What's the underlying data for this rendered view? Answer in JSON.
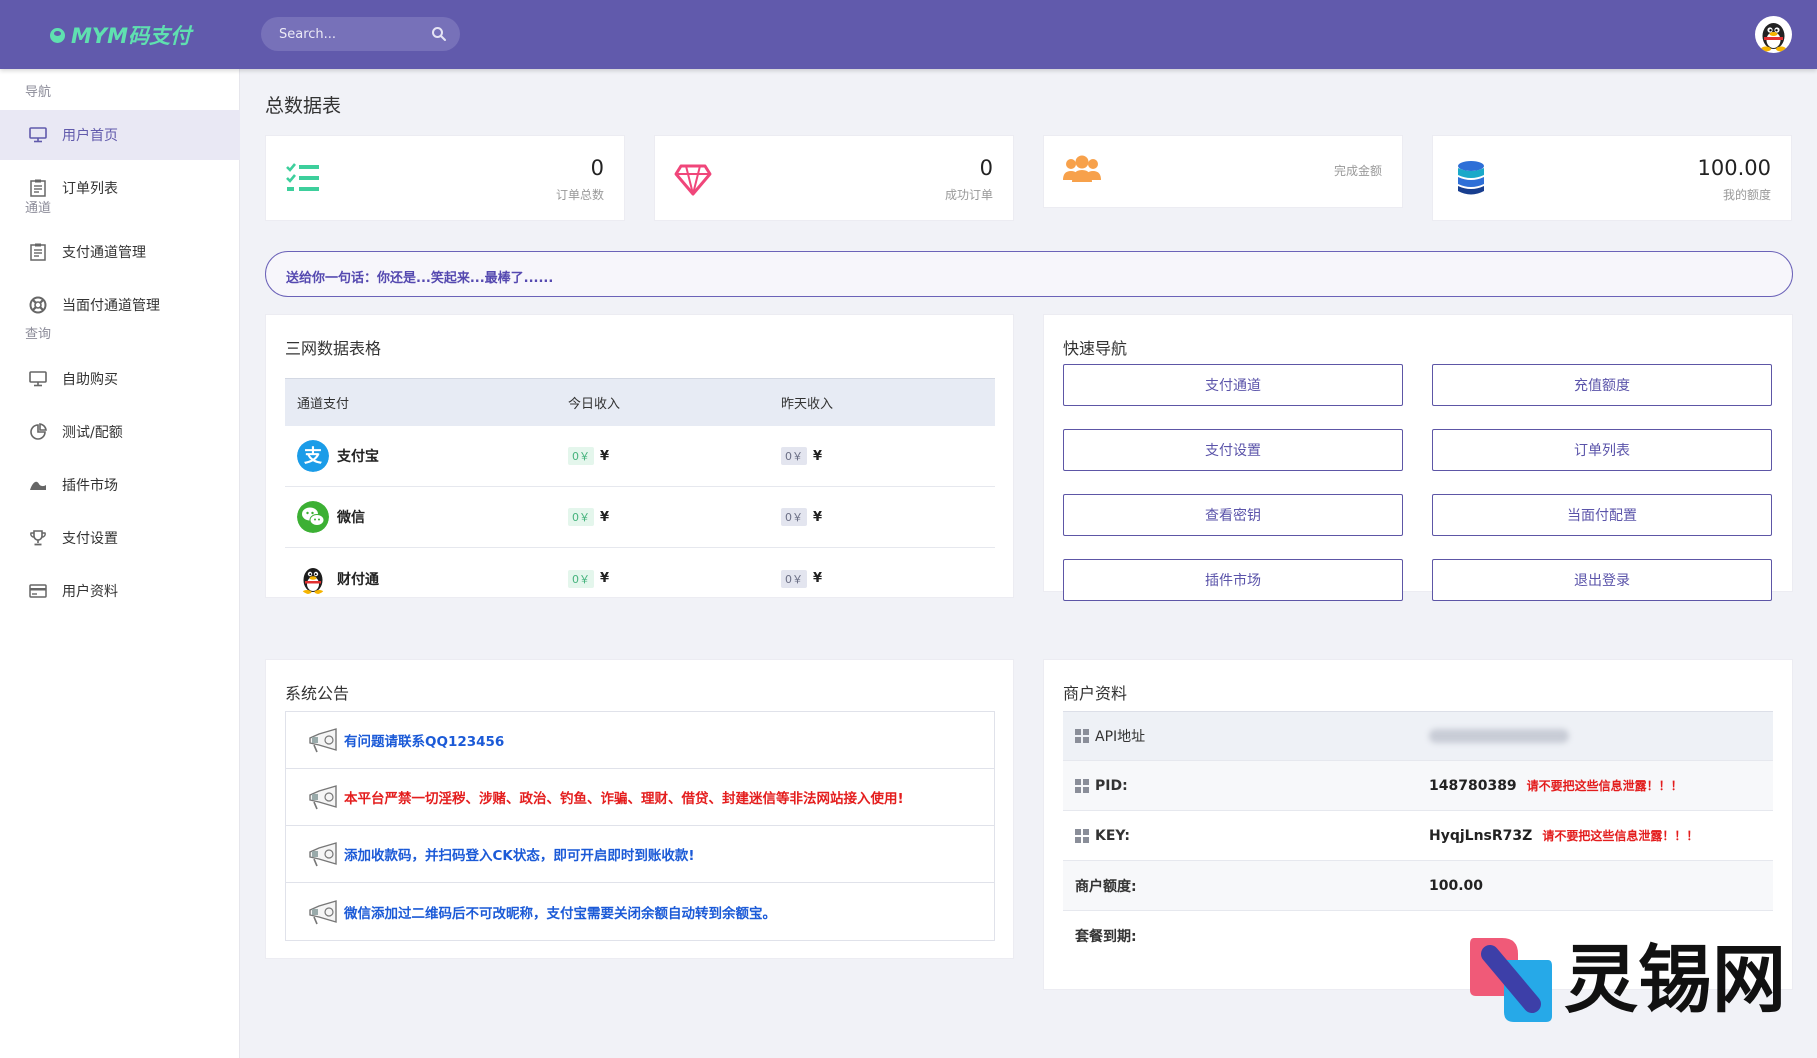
{
  "app": {
    "logo_text": "MYM码支付"
  },
  "search": {
    "placeholder": "Search..."
  },
  "sidebar": {
    "sections": [
      "导航",
      "通道",
      "查询"
    ],
    "items": [
      {
        "label": "用户首页",
        "icon": "monitor-icon",
        "active": true
      },
      {
        "label": "订单列表",
        "icon": "clipboard-icon"
      },
      {
        "label": "支付通道管理",
        "icon": "clipboard-icon"
      },
      {
        "label": "当面付通道管理",
        "icon": "lifebuoy-icon"
      },
      {
        "label": "自助购买",
        "icon": "monitor-icon"
      },
      {
        "label": "测试/配额",
        "icon": "pie-chart-icon"
      },
      {
        "label": "插件市场",
        "icon": "wave-icon"
      },
      {
        "label": "支付设置",
        "icon": "trophy-icon"
      },
      {
        "label": "用户资料",
        "icon": "credit-card-icon"
      }
    ]
  },
  "page_title": "总数据表",
  "stats": [
    {
      "value": "0",
      "caption": "订单总数",
      "icon": "checklist-icon",
      "color": "#3dcf9c"
    },
    {
      "value": "0",
      "caption": "成功订单",
      "icon": "diamond-icon",
      "color": "#f0467a"
    },
    {
      "value": "",
      "caption": "完成金额",
      "icon": "users-icon",
      "color": "#f7a14b"
    },
    {
      "value": "100.00",
      "caption": "我的额度",
      "icon": "database-icon",
      "color": "#2e6fd7"
    }
  ],
  "motto": "送给你一句话：你还是...笑起来...最棒了......",
  "data_table": {
    "title": "三网数据表格",
    "headers": [
      "通道支付",
      "今日收入",
      "昨天收入"
    ],
    "rows": [
      {
        "name": "支付宝",
        "icon": "alipay-icon",
        "today": "0￥",
        "yesterday": "0￥"
      },
      {
        "name": "微信",
        "icon": "wechat-icon",
        "today": "0￥",
        "yesterday": "0￥"
      },
      {
        "name": "财付通",
        "icon": "qq-penguin-icon",
        "today": "0￥",
        "yesterday": "0￥"
      }
    ],
    "currency": "¥"
  },
  "quick_nav": {
    "title": "快速导航",
    "buttons": [
      "支付通道",
      "充值额度",
      "支付设置",
      "订单列表",
      "查看密钥",
      "当面付配置",
      "插件市场",
      "退出登录"
    ]
  },
  "announcements": {
    "title": "系统公告",
    "items": [
      {
        "text": "有问题请联系QQ123456",
        "color": "blue"
      },
      {
        "text": "本平台严禁一切淫秽、涉赌、政治、钓鱼、诈骗、理财、借贷、封建迷信等非法网站接入使用!",
        "color": "red"
      },
      {
        "text": "添加收款码，并扫码登入CK状态，即可开启即时到账收款!",
        "color": "blue"
      },
      {
        "text": "微信添加过二维码后不可改昵称，支付宝需要关闭余额自动转到余额宝。",
        "color": "blue"
      }
    ]
  },
  "merchant": {
    "title": "商户资料",
    "rows": [
      {
        "key": "API地址",
        "value": "",
        "warning": ""
      },
      {
        "key": "PID:",
        "value": "148780389",
        "warning": "请不要把这些信息泄露！！！"
      },
      {
        "key": "KEY:",
        "value": "HyqjLnsR73Z",
        "warning": "请不要把这些信息泄露！！！"
      },
      {
        "key": "商户额度:",
        "value": "100.00",
        "warning": ""
      },
      {
        "key": "套餐到期:",
        "value": "",
        "warning": ""
      }
    ]
  },
  "watermark": {
    "text": "灵锡网"
  }
}
